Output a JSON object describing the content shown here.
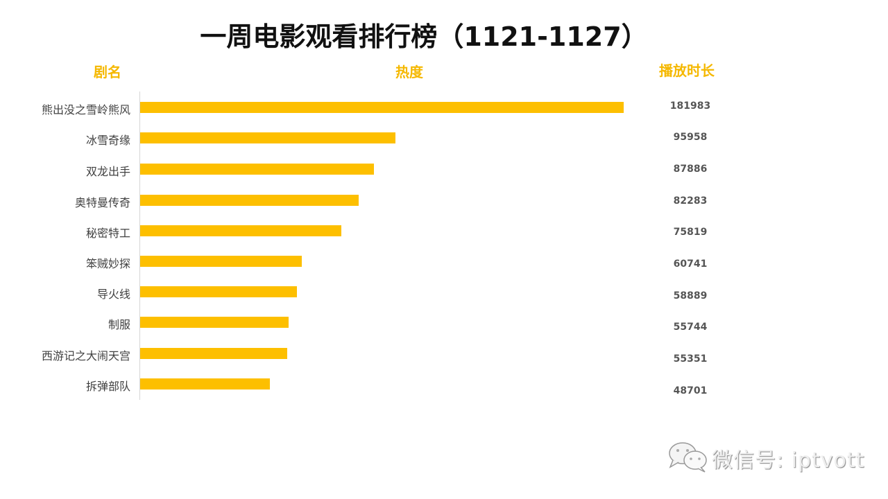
{
  "title": "一周电影观看排行榜（1121-1127）",
  "headers": {
    "name": "剧名",
    "heat": "热度",
    "duration": "播放时长"
  },
  "colors": {
    "bar": "#fdbf00",
    "header": "#f5b800",
    "title": "#111111",
    "label": "#404040",
    "value": "#555555"
  },
  "rows": [
    {
      "name": "熊出没之雪岭熊风",
      "value": "181983"
    },
    {
      "name": "冰雪奇缘",
      "value": "95958"
    },
    {
      "name": "双龙出手",
      "value": "87886"
    },
    {
      "name": "奥特曼传奇",
      "value": "82283"
    },
    {
      "name": "秘密特工",
      "value": "75819"
    },
    {
      "name": "笨贼妙探",
      "value": "60741"
    },
    {
      "name": "导火线",
      "value": "58889"
    },
    {
      "name": "制服",
      "value": "55744"
    },
    {
      "name": "西游记之大闹天宫",
      "value": "55351"
    },
    {
      "name": "拆弹部队",
      "value": "48701"
    }
  ],
  "watermark": {
    "text": "微信号: iptvott",
    "icon": "wechat-icon"
  },
  "chart_data": {
    "type": "bar",
    "orientation": "horizontal",
    "title": "一周电影观看排行榜（1121-1127）",
    "xlabel": "热度",
    "ylabel": "剧名",
    "categories": [
      "熊出没之雪岭熊风",
      "冰雪奇缘",
      "双龙出手",
      "奥特曼传奇",
      "秘密特工",
      "笨贼妙探",
      "导火线",
      "制服",
      "西游记之大闹天宫",
      "拆弹部队"
    ],
    "values": [
      181983,
      95958,
      87886,
      82283,
      75819,
      60741,
      58889,
      55744,
      55351,
      48701
    ],
    "value_column_label": "播放时长",
    "grid": false,
    "legend": null,
    "xlim": [
      0,
      181983
    ]
  }
}
